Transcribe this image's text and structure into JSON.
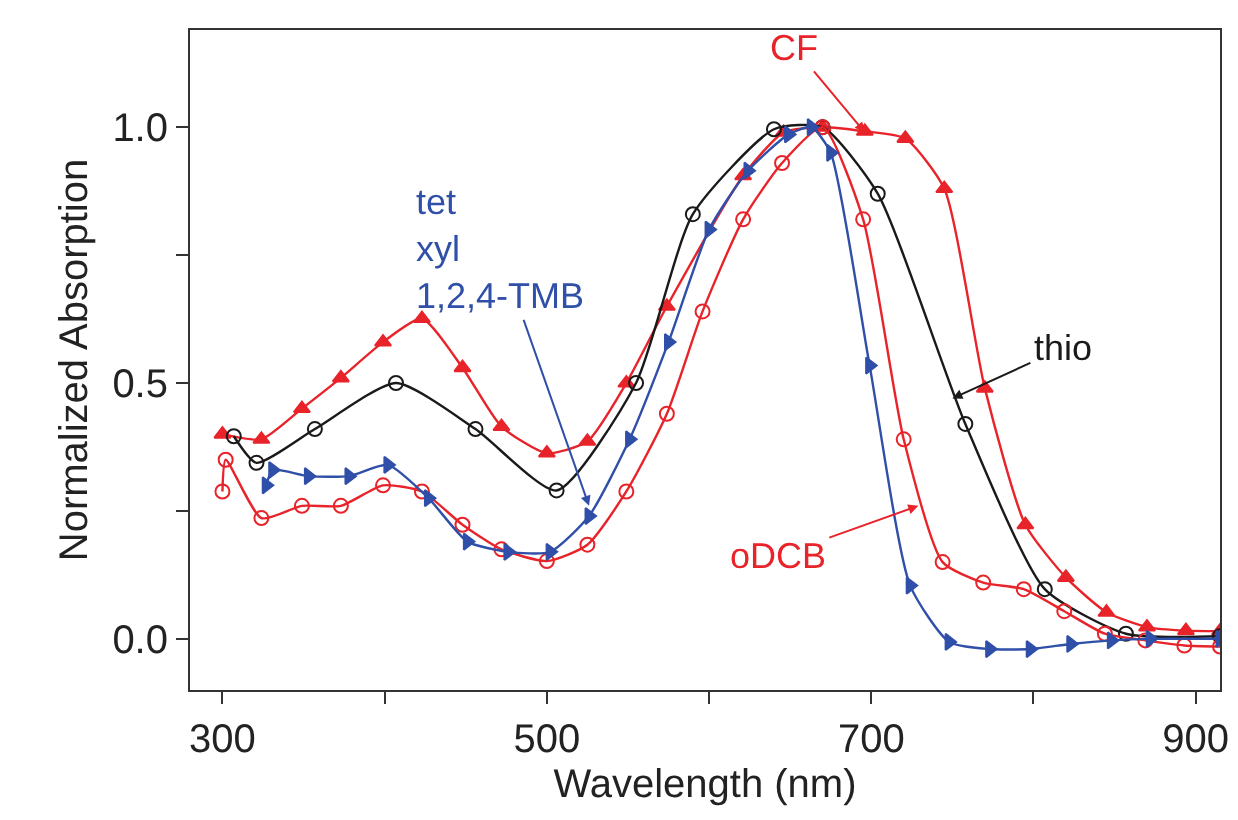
{
  "chart_data": {
    "type": "line",
    "xlabel": "Wavelength (nm)",
    "ylabel": "Normalized Absorption",
    "xlim": [
      280,
      915
    ],
    "ylim": [
      -0.1,
      1.19
    ],
    "xticks": [
      300,
      {
        "value": 400,
        "label": null
      },
      500,
      {
        "value": 600,
        "label": null
      },
      700,
      {
        "value": 800,
        "label": null
      },
      900
    ],
    "yticks": [
      {
        "value": 0,
        "label": "0.0"
      },
      {
        "value": 0.25,
        "label": null
      },
      0.5,
      {
        "value": 0.75,
        "label": null
      },
      {
        "value": 1,
        "label": "1.0"
      }
    ],
    "series": [
      {
        "color": "#e8232a",
        "marker": "triangle",
        "x": [
          300,
          324,
          349,
          373,
          399,
          423,
          448,
          472,
          500,
          525,
          549,
          574,
          621,
          646,
          670,
          696,
          721,
          745,
          770,
          795,
          820,
          845,
          870,
          894,
          915
        ],
        "values": [
          0.4,
          0.39,
          0.45,
          0.51,
          0.58,
          0.626,
          0.53,
          0.415,
          0.363,
          0.386,
          0.5,
          0.65,
          0.905,
          0.99,
          1.0,
          0.992,
          0.978,
          0.88,
          0.49,
          0.223,
          0.12,
          0.052,
          0.023,
          0.016,
          0.015
        ]
      },
      {
        "color": "#1a1a1a",
        "marker": "circle",
        "x": [
          307,
          321,
          357,
          407,
          456,
          506,
          555,
          590,
          640,
          670,
          704,
          758,
          807,
          857,
          915
        ],
        "values": [
          0.396,
          0.344,
          0.41,
          0.5,
          0.41,
          0.29,
          0.5,
          0.83,
          0.996,
          1.0,
          0.87,
          0.42,
          0.097,
          0.01,
          0.005
        ]
      },
      {
        "color": "#e8232a",
        "marker": "circle",
        "x": [
          300,
          302,
          324,
          349,
          373,
          399,
          423,
          448,
          472,
          500,
          525,
          549,
          574,
          596,
          621,
          645,
          670,
          695,
          720,
          744,
          769,
          794,
          819,
          844,
          869,
          893,
          915
        ],
        "values": [
          0.288,
          0.35,
          0.236,
          0.26,
          0.26,
          0.3,
          0.288,
          0.223,
          0.175,
          0.152,
          0.184,
          0.288,
          0.44,
          0.64,
          0.82,
          0.93,
          1.0,
          0.82,
          0.39,
          0.15,
          0.11,
          0.097,
          0.054,
          0.01,
          -0.003,
          -0.013,
          -0.015
        ]
      },
      {
        "color": "#2f4fa8",
        "marker": "triangle",
        "x": [
          327,
          331,
          353,
          378,
          402,
          427,
          451,
          476,
          502,
          526,
          551,
          575,
          600,
          624,
          649,
          663,
          675,
          699,
          724,
          748,
          773,
          798,
          823,
          848,
          872,
          915
        ],
        "values": [
          0.3,
          0.33,
          0.318,
          0.318,
          0.34,
          0.275,
          0.19,
          0.17,
          0.17,
          0.24,
          0.39,
          0.58,
          0.8,
          0.915,
          0.986,
          1.0,
          0.95,
          0.534,
          0.104,
          -0.006,
          -0.02,
          -0.02,
          -0.01,
          -0.003,
          0.0,
          0.0
        ]
      }
    ],
    "annotations": [
      {
        "text": "CF",
        "x": 696,
        "y": 0.99
      },
      {
        "text": "thio",
        "x": 750,
        "y": 0.47
      },
      {
        "text": "oDCB",
        "x": 729,
        "y": 0.26
      },
      {
        "text": "tet\nxyl\n1,2,4-TMB",
        "x": 526,
        "y": 0.26
      }
    ]
  }
}
